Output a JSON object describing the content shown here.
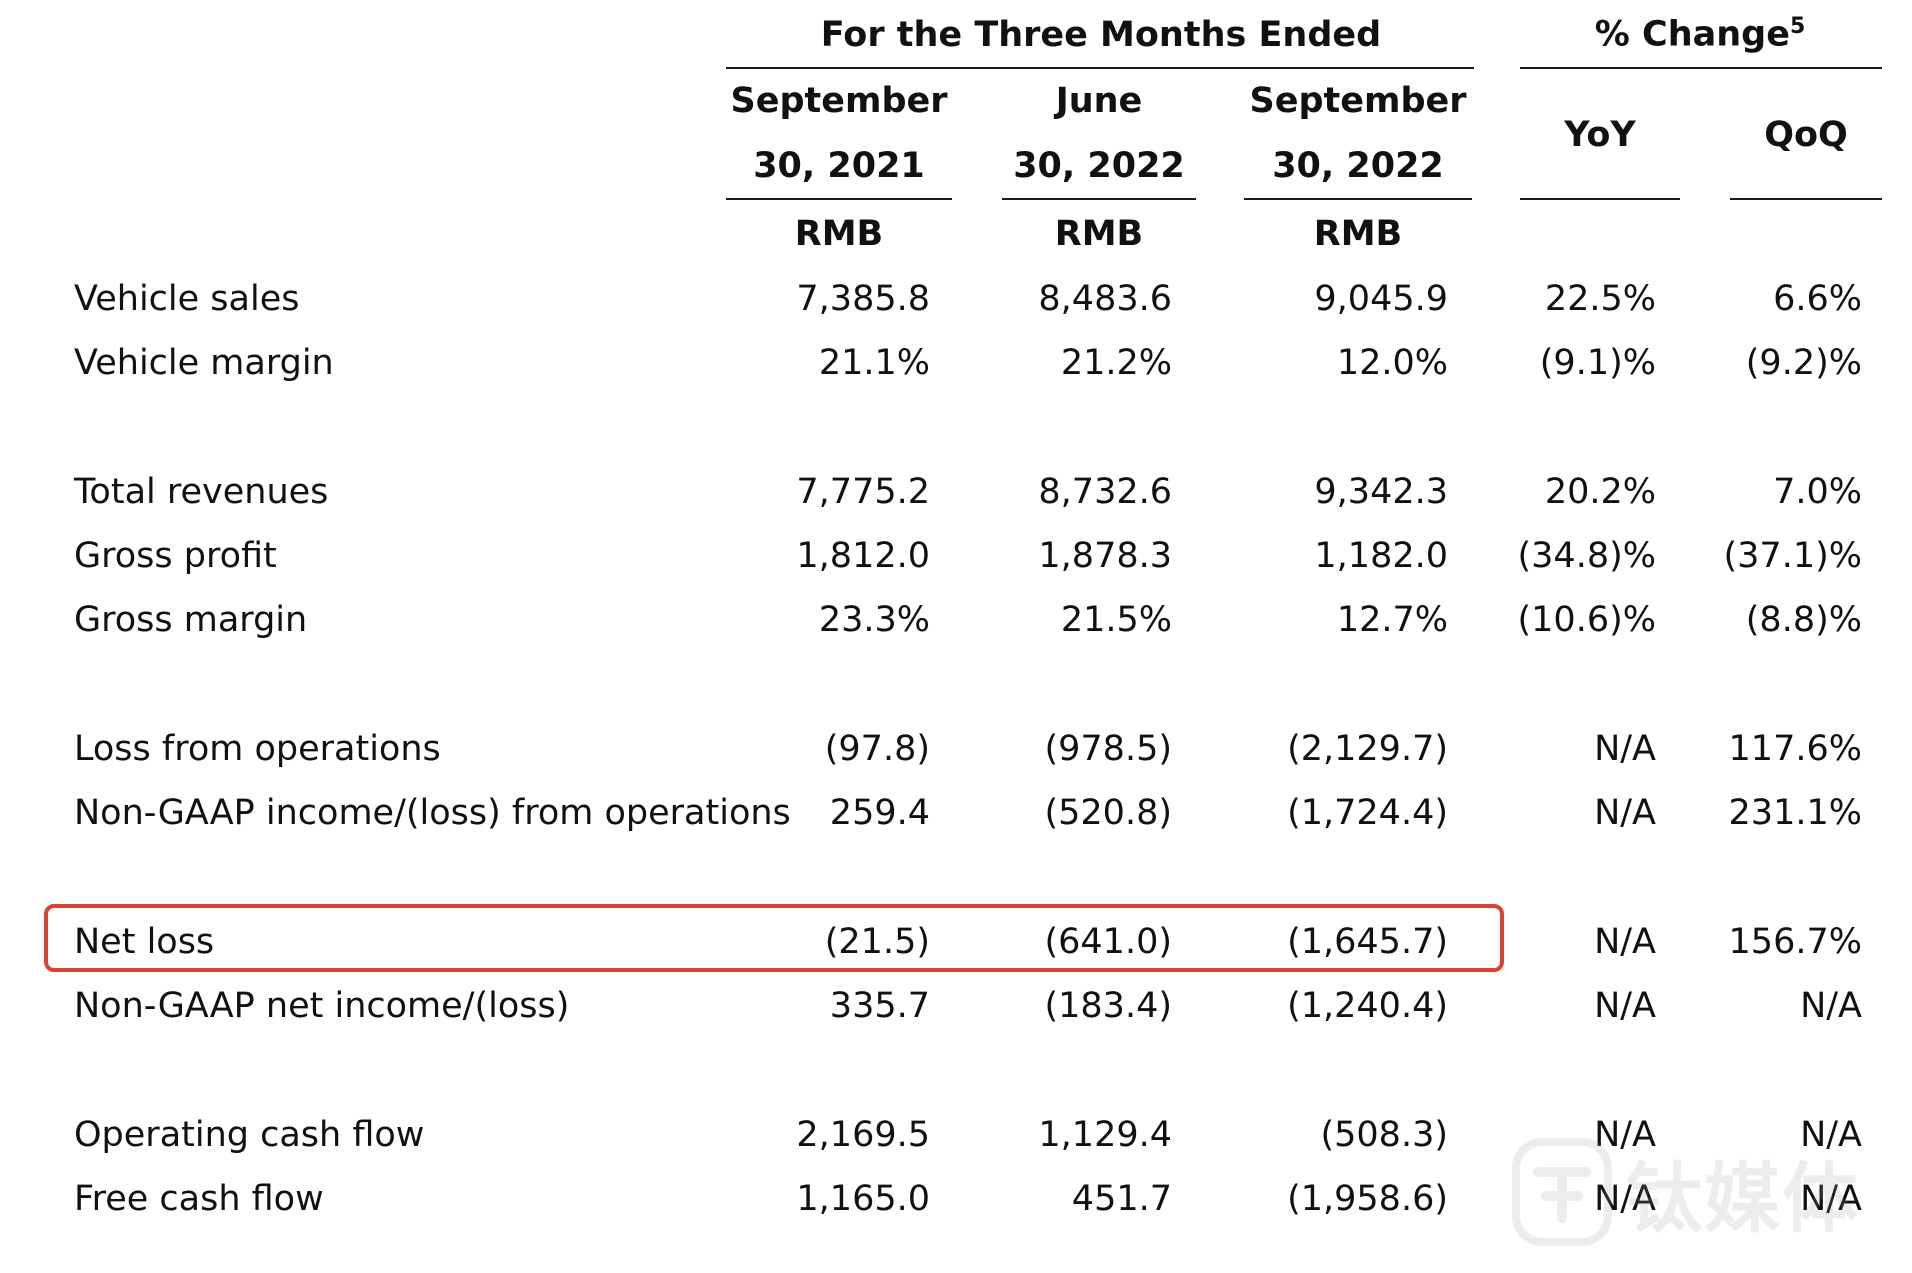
{
  "header": {
    "period_title": "For the Three Months Ended",
    "change_title": "% Change",
    "change_footnote": "5",
    "columns": [
      {
        "line1": "September",
        "line2": "30, 2021",
        "unit": "RMB"
      },
      {
        "line1": "June",
        "line2": "30, 2022",
        "unit": "RMB"
      },
      {
        "line1": "September",
        "line2": "30, 2022",
        "unit": "RMB"
      }
    ],
    "yoy": "YoY",
    "qoq": "QoQ"
  },
  "rows": [
    {
      "label": "Vehicle sales",
      "values": [
        "7,385.8",
        "8,483.6",
        "9,045.9"
      ],
      "yoy": "22.5%",
      "qoq": "6.6%"
    },
    {
      "label": "Vehicle margin",
      "values": [
        "21.1%",
        "21.2%",
        "12.0%"
      ],
      "yoy": "(9.1)%",
      "qoq": "(9.2)%"
    },
    {
      "label": "Total revenues",
      "values": [
        "7,775.2",
        "8,732.6",
        "9,342.3"
      ],
      "yoy": "20.2%",
      "qoq": "7.0%"
    },
    {
      "label": "Gross profit",
      "values": [
        "1,812.0",
        "1,878.3",
        "1,182.0"
      ],
      "yoy": "(34.8)%",
      "qoq": "(37.1)%"
    },
    {
      "label": "Gross margin",
      "values": [
        "23.3%",
        "21.5%",
        "12.7%"
      ],
      "yoy": "(10.6)%",
      "qoq": "(8.8)%"
    },
    {
      "label": "Loss from operations",
      "values": [
        "(97.8)",
        "(978.5)",
        "(2,129.7)"
      ],
      "yoy": "N/A",
      "qoq": "117.6%"
    },
    {
      "label": "Non-GAAP income/(loss) from operations",
      "values": [
        "259.4",
        "(520.8)",
        "(1,724.4)"
      ],
      "yoy": "N/A",
      "qoq": "231.1%"
    },
    {
      "label": "Net loss",
      "values": [
        "(21.5)",
        "(641.0)",
        "(1,645.7)"
      ],
      "yoy": "N/A",
      "qoq": "156.7%",
      "highlighted": true
    },
    {
      "label": "Non-GAAP net income/(loss)",
      "values": [
        "335.7",
        "(183.4)",
        "(1,240.4)"
      ],
      "yoy": "N/A",
      "qoq": "N/A"
    },
    {
      "label": "Operating cash flow",
      "values": [
        "2,169.5",
        "1,129.4",
        "(508.3)"
      ],
      "yoy": "N/A",
      "qoq": "N/A"
    },
    {
      "label": "Free cash flow",
      "values": [
        "1,165.0",
        "451.7",
        "(1,958.6)"
      ],
      "yoy": "N/A",
      "qoq": "N/A"
    }
  ],
  "highlight_color": "#d9432f",
  "watermark": {
    "text": "钛媒体",
    "icon": "tmtpost-logo-icon"
  }
}
